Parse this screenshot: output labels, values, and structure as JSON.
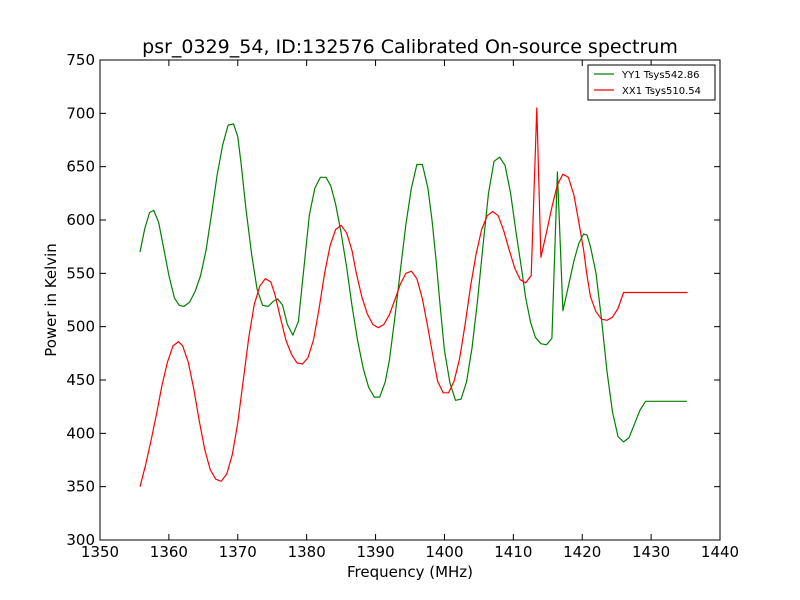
{
  "chart_data": {
    "type": "line",
    "title": "psr_0329_54, ID:132576 Calibrated On-source spectrum",
    "xlabel": "Frequency (MHz)",
    "ylabel": "Power in Kelvin",
    "xlim": [
      1350,
      1440
    ],
    "ylim": [
      300,
      750
    ],
    "xticks": [
      1350,
      1360,
      1370,
      1380,
      1390,
      1400,
      1410,
      1420,
      1430,
      1440
    ],
    "yticks": [
      300,
      350,
      400,
      450,
      500,
      550,
      600,
      650,
      700,
      750
    ],
    "grid": false,
    "legend_position": "top-right",
    "series": [
      {
        "name": "YY1 Tsys542.86",
        "color": "#008000",
        "x": [
          1355.8,
          1356.5,
          1357.2,
          1357.8,
          1358.5,
          1359.2,
          1360.0,
          1360.8,
          1361.5,
          1362.2,
          1363.0,
          1363.8,
          1364.6,
          1365.4,
          1366.2,
          1367.0,
          1367.8,
          1368.6,
          1369.4,
          1370.0,
          1370.5,
          1371.2,
          1372.0,
          1372.8,
          1373.6,
          1374.4,
          1375.2,
          1375.8,
          1376.5,
          1377.2,
          1378.0,
          1378.8,
          1379.6,
          1380.4,
          1381.2,
          1382.0,
          1382.8,
          1383.5,
          1384.2,
          1385.0,
          1385.8,
          1386.6,
          1387.4,
          1388.2,
          1389.0,
          1389.8,
          1390.6,
          1391.4,
          1392.0,
          1392.8,
          1393.6,
          1394.4,
          1395.2,
          1396.0,
          1396.8,
          1397.6,
          1398.2,
          1398.8,
          1399.4,
          1400.0,
          1400.8,
          1401.6,
          1402.4,
          1403.2,
          1404.0,
          1404.8,
          1405.6,
          1406.4,
          1407.2,
          1408.0,
          1408.8,
          1409.6,
          1410.4,
          1411.2,
          1411.8,
          1412.5,
          1413.2,
          1414.0,
          1414.8,
          1415.6,
          1416.4,
          1417.2,
          1418.0,
          1418.8,
          1419.5,
          1420.2,
          1420.7,
          1421.2,
          1422.0,
          1422.8,
          1423.6,
          1424.4,
          1425.2,
          1426.0,
          1426.8,
          1427.6,
          1428.4,
          1429.2,
          1430.0,
          1430.8,
          1431.6,
          1432.2,
          1433.0,
          1433.8,
          1434.6,
          1435.2
        ],
        "values": [
          570,
          592,
          607,
          609,
          598,
          575,
          548,
          527,
          520,
          519,
          523,
          533,
          548,
          572,
          606,
          642,
          670,
          689,
          690,
          678,
          652,
          610,
          568,
          535,
          520,
          519,
          524,
          526,
          520,
          502,
          492,
          505,
          555,
          605,
          630,
          640,
          640,
          632,
          615,
          588,
          556,
          519,
          487,
          461,
          443,
          434,
          434,
          448,
          468,
          508,
          553,
          596,
          630,
          652,
          652,
          630,
          600,
          561,
          518,
          478,
          447,
          431,
          432,
          448,
          480,
          524,
          576,
          625,
          655,
          659,
          651,
          625,
          588,
          554,
          527,
          504,
          490,
          484,
          483,
          489,
          645,
          515,
          538,
          562,
          578,
          587,
          586,
          575,
          550,
          507,
          458,
          420,
          397,
          392,
          396,
          409,
          422,
          430,
          430,
          430,
          430,
          430,
          430,
          430,
          430,
          430
        ],
        "values_note_free": true
      },
      {
        "name": "XX1 Tsys510.54",
        "color": "#ff0000",
        "x": [
          1355.8,
          1356.6,
          1357.4,
          1358.2,
          1359.0,
          1359.8,
          1360.6,
          1361.4,
          1362.0,
          1362.8,
          1363.6,
          1364.4,
          1365.2,
          1366.0,
          1366.8,
          1367.6,
          1368.4,
          1369.2,
          1370.0,
          1370.8,
          1371.6,
          1372.4,
          1373.2,
          1374.0,
          1374.8,
          1375.4,
          1376.2,
          1377.0,
          1377.8,
          1378.6,
          1379.4,
          1380.2,
          1381.0,
          1381.8,
          1382.6,
          1383.4,
          1384.2,
          1385.0,
          1385.8,
          1386.6,
          1387.2,
          1388.0,
          1388.8,
          1389.6,
          1390.4,
          1391.2,
          1392.0,
          1392.8,
          1393.6,
          1394.4,
          1395.2,
          1396.0,
          1396.8,
          1397.6,
          1398.4,
          1399.0,
          1399.8,
          1400.6,
          1401.4,
          1402.2,
          1403.0,
          1403.8,
          1404.6,
          1405.4,
          1406.2,
          1407.0,
          1407.8,
          1408.6,
          1409.4,
          1410.2,
          1411.0,
          1411.8,
          1412.6,
          1413.4,
          1414.0,
          1414.8,
          1415.6,
          1416.4,
          1417.2,
          1418.0,
          1418.8,
          1419.5,
          1420.2,
          1420.7,
          1421.2,
          1422.0,
          1422.8,
          1423.6,
          1424.4,
          1425.2,
          1426.0,
          1426.8,
          1427.6,
          1428.4,
          1429.2,
          1430.0,
          1430.8,
          1431.6,
          1432.4,
          1433.2,
          1434.0,
          1434.8,
          1435.3
        ],
        "values": [
          350,
          370,
          393,
          418,
          445,
          467,
          482,
          486,
          482,
          467,
          442,
          412,
          385,
          366,
          357,
          355,
          362,
          380,
          410,
          450,
          490,
          521,
          538,
          545,
          542,
          530,
          508,
          487,
          474,
          466,
          465,
          471,
          488,
          517,
          550,
          576,
          591,
          595,
          588,
          571,
          550,
          528,
          512,
          502,
          499,
          502,
          511,
          525,
          540,
          550,
          552,
          545,
          526,
          499,
          470,
          449,
          438,
          438,
          449,
          470,
          502,
          538,
          568,
          591,
          604,
          608,
          604,
          590,
          572,
          555,
          544,
          541,
          548,
          705,
          565,
          588,
          612,
          633,
          643,
          640,
          623,
          598,
          572,
          548,
          528,
          514,
          507,
          506,
          509,
          517,
          532,
          532,
          532,
          532,
          532,
          532,
          532,
          532,
          532,
          532,
          532,
          532,
          532
        ]
      }
    ]
  }
}
